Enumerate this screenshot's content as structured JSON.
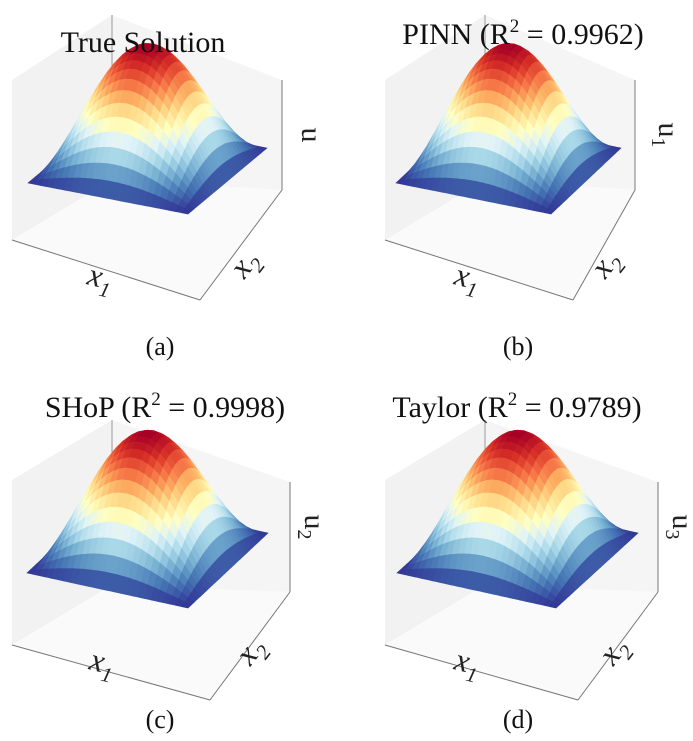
{
  "chart_data": [
    {
      "type": "surface",
      "title": "True Solution",
      "xlabel": "x",
      "xlabel_sub": "1",
      "ylabel": "x",
      "ylabel_sub": "2",
      "zlabel": "u",
      "zlabel_sub": "",
      "caption": "(a)",
      "r2": null
    },
    {
      "type": "surface",
      "title_prefix": "PINN (R",
      "title_sup": "2",
      "title_suffix": " = 0.9962)",
      "xlabel": "x",
      "xlabel_sub": "1",
      "ylabel": "x",
      "ylabel_sub": "2",
      "zlabel": "u",
      "zlabel_sub": "1",
      "caption": "(b)",
      "r2": 0.9962
    },
    {
      "type": "surface",
      "title_prefix": "SHoP (R",
      "title_sup": "2",
      "title_suffix": " = 0.9998)",
      "xlabel": "x",
      "xlabel_sub": "1",
      "ylabel": "x",
      "ylabel_sub": "2",
      "zlabel": "u",
      "zlabel_sub": "2",
      "caption": "(c)",
      "r2": 0.9998
    },
    {
      "type": "surface",
      "title_prefix": "Taylor (R",
      "title_sup": "2",
      "title_suffix": " = 0.9789)",
      "xlabel": "x",
      "xlabel_sub": "1",
      "ylabel": "x",
      "ylabel_sub": "2",
      "zlabel": "u",
      "zlabel_sub": "3",
      "caption": "(d)",
      "r2": 0.9789
    }
  ],
  "colormap": [
    "#313695",
    "#4575b4",
    "#74add1",
    "#abd9e9",
    "#e0f3f8",
    "#ffffbf",
    "#fee090",
    "#fdae61",
    "#f46d43",
    "#d73027",
    "#a50026"
  ]
}
